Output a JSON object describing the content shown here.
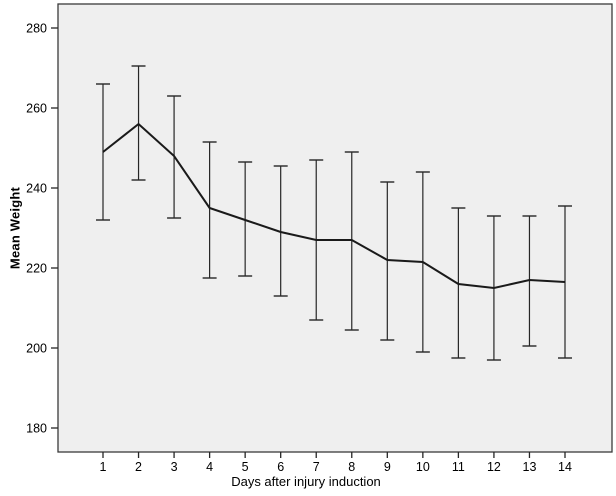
{
  "chart_data": {
    "type": "line",
    "title": "",
    "xlabel": "Days after injury induction",
    "ylabel": "Mean Weight",
    "x": [
      1,
      2,
      3,
      4,
      5,
      6,
      7,
      8,
      9,
      10,
      11,
      12,
      13,
      14
    ],
    "xtick_labels": [
      "1",
      "2",
      "3",
      "4",
      "5",
      "6",
      "7",
      "8",
      "9",
      "10",
      "11",
      "12",
      "13",
      "14"
    ],
    "series": [
      {
        "name": "Mean Weight",
        "values": [
          249,
          256,
          248,
          235,
          232,
          229,
          227,
          227,
          222,
          221.5,
          216,
          215,
          217,
          216.5
        ],
        "error_low": [
          232,
          242,
          232.5,
          217.5,
          218,
          213,
          207,
          204.5,
          202,
          199,
          197.5,
          197,
          200.5,
          197.5
        ],
        "error_high": [
          266,
          270.5,
          263,
          251.5,
          246.5,
          245.5,
          247,
          249,
          241.5,
          244,
          235,
          233,
          233,
          235.5
        ]
      }
    ],
    "ylim": [
      174,
      286
    ],
    "yticks": [
      180,
      200,
      220,
      240,
      260,
      280
    ],
    "ytick_labels": [
      "180",
      "200",
      "220",
      "240",
      "260",
      "280"
    ],
    "grid": false,
    "legend": false,
    "error_bars": true,
    "colors": {
      "plot_bg": "#efefef",
      "frame": "#3a3a3a",
      "line": "#1a1a1a",
      "error_bar": "#262626",
      "tick": "#262626",
      "text": "#000000",
      "outer_bg": "#ffffff"
    }
  }
}
